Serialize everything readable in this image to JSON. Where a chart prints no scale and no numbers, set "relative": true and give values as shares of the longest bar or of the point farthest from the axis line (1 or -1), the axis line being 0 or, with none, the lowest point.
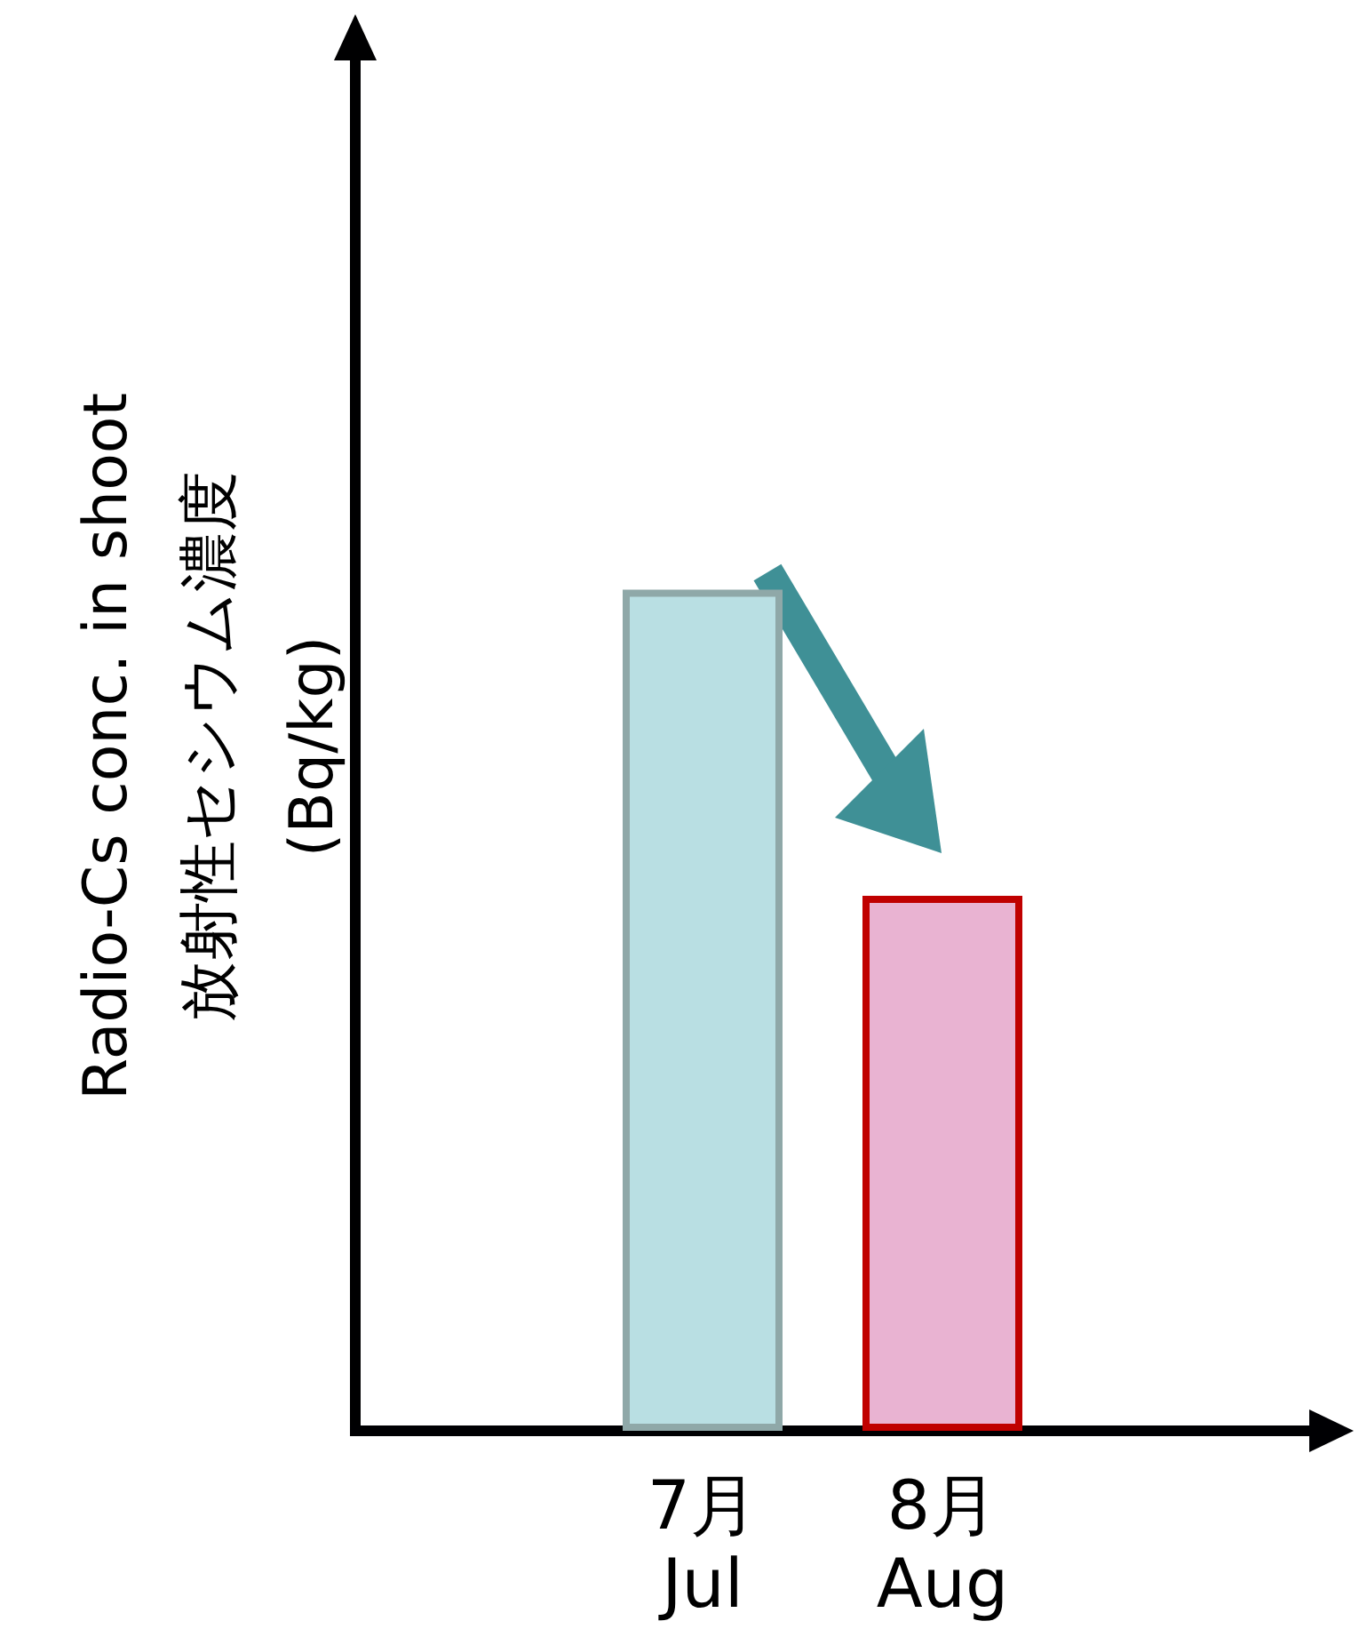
{
  "chart_data": {
    "type": "bar",
    "relative": true,
    "ylabel": "Radio-Cs conc. in shoot\n放射性セシウム濃度\n(Bq/kg)",
    "categories": [
      "7月\nJul",
      "8月\nAug"
    ],
    "values": [
      1,
      0.636
    ],
    "colors": [
      "#b9dfe3",
      "#e9b3d2"
    ],
    "grid": false
  }
}
